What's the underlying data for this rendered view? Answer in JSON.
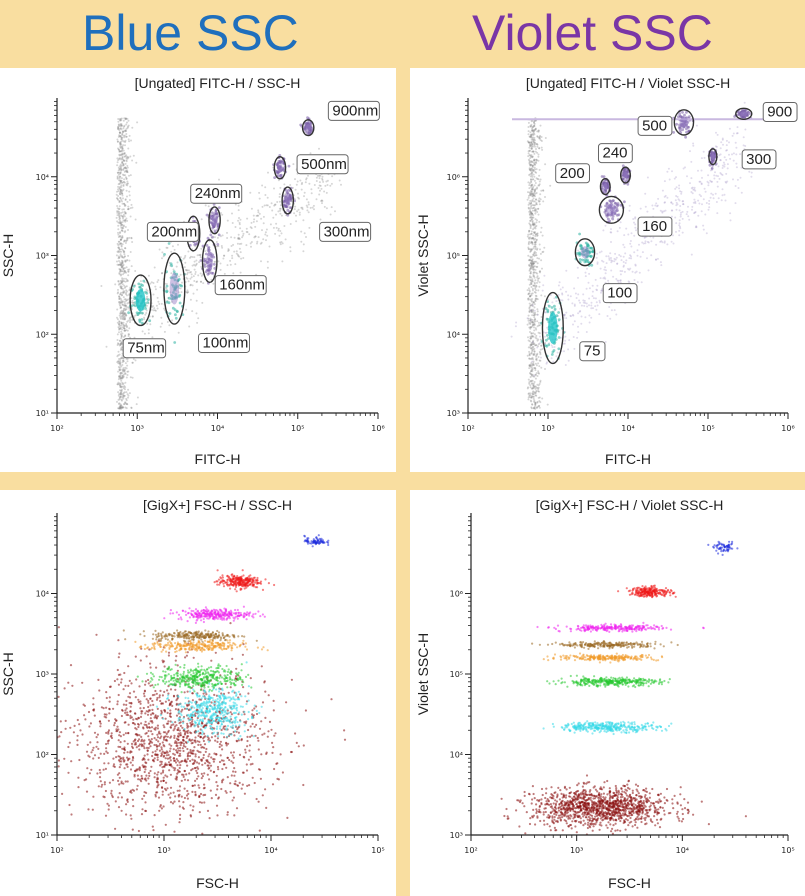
{
  "header": {
    "left_title": "Blue SSC",
    "right_title": "Violet SSC"
  },
  "colors": {
    "blue_title": "#1f6fbd",
    "violet_title": "#7a36a6",
    "background": "#f9dea0"
  },
  "chart_data": [
    {
      "type": "scatter",
      "title": "[Ungated] FITC-H / SSC-H",
      "xlabel": "FITC-H",
      "ylabel": "SSC-H",
      "xscale": "log",
      "yscale": "log",
      "xlim": [
        100,
        1000000
      ],
      "ylim": [
        10,
        100000
      ],
      "x_ticks": [
        {
          "v": 100,
          "t": "10²"
        },
        {
          "v": 1000,
          "t": "10³"
        },
        {
          "v": 10000,
          "t": "10⁴"
        },
        {
          "v": 100000,
          "t": "10⁵"
        },
        {
          "v": 1000000,
          "t": "10⁶"
        }
      ],
      "y_ticks": [
        {
          "v": 10,
          "t": "10¹"
        },
        {
          "v": 100,
          "t": "10²"
        },
        {
          "v": 1000,
          "t": "10³"
        },
        {
          "v": 10000,
          "t": "10⁴"
        }
      ],
      "gates": [
        {
          "label": "75nm",
          "x": 1100,
          "y": 270,
          "rx_dec": 0.13,
          "ry_dec": 0.32,
          "lx": 750,
          "ly": 60
        },
        {
          "label": "100nm",
          "x": 2900,
          "y": 380,
          "rx_dec": 0.13,
          "ry_dec": 0.45,
          "lx": 6500,
          "ly": 70
        },
        {
          "label": "160nm",
          "x": 8000,
          "y": 850,
          "rx_dec": 0.09,
          "ry_dec": 0.27,
          "lx": 10500,
          "ly": 380
        },
        {
          "label": "200nm",
          "x": 5000,
          "y": 1900,
          "rx_dec": 0.08,
          "ry_dec": 0.22,
          "lx": 1500,
          "ly": 1800
        },
        {
          "label": "240nm",
          "x": 9200,
          "y": 2800,
          "rx_dec": 0.07,
          "ry_dec": 0.17,
          "lx": 5200,
          "ly": 5500
        },
        {
          "label": "300nm",
          "x": 75000,
          "y": 5000,
          "rx_dec": 0.07,
          "ry_dec": 0.17,
          "lx": 210000,
          "ly": 1800
        },
        {
          "label": "500nm",
          "x": 60000,
          "y": 13000,
          "rx_dec": 0.07,
          "ry_dec": 0.14,
          "lx": 110000,
          "ly": 13000
        },
        {
          "label": "900nm",
          "x": 135000,
          "y": 42000,
          "rx_dec": 0.07,
          "ry_dec": 0.1,
          "lx": 270000,
          "ly": 62000
        }
      ]
    },
    {
      "type": "scatter",
      "title": "[Ungated] FITC-H / Violet SSC-H",
      "xlabel": "FITC-H",
      "ylabel": "Violet SSC-H",
      "xscale": "log",
      "yscale": "log",
      "xlim": [
        100,
        1000000
      ],
      "ylim": [
        1000,
        10000000
      ],
      "x_ticks": [
        {
          "v": 100,
          "t": "10²"
        },
        {
          "v": 1000,
          "t": "10³"
        },
        {
          "v": 10000,
          "t": "10⁴"
        },
        {
          "v": 100000,
          "t": "10⁵"
        },
        {
          "v": 1000000,
          "t": "10⁶"
        }
      ],
      "y_ticks": [
        {
          "v": 1000,
          "t": "10³"
        },
        {
          "v": 10000,
          "t": "10⁴"
        },
        {
          "v": 100000,
          "t": "10⁵"
        },
        {
          "v": 1000000,
          "t": "10⁶"
        }
      ],
      "gates": [
        {
          "label": "75",
          "x": 1150,
          "y": 12000,
          "rx_dec": 0.13,
          "ry_dec": 0.45,
          "lx": 2800,
          "ly": 5500
        },
        {
          "label": "100",
          "x": 2900,
          "y": 110000,
          "rx_dec": 0.12,
          "ry_dec": 0.17,
          "lx": 5500,
          "ly": 30000
        },
        {
          "label": "160",
          "x": 6200,
          "y": 380000,
          "rx_dec": 0.15,
          "ry_dec": 0.17,
          "lx": 15000,
          "ly": 210000
        },
        {
          "label": "200",
          "x": 5200,
          "y": 750000,
          "rx_dec": 0.06,
          "ry_dec": 0.1,
          "lx": 1400,
          "ly": 1000000
        },
        {
          "label": "240",
          "x": 9300,
          "y": 1050000,
          "rx_dec": 0.06,
          "ry_dec": 0.1,
          "lx": 4800,
          "ly": 1800000
        },
        {
          "label": "300",
          "x": 115000,
          "y": 1800000,
          "rx_dec": 0.05,
          "ry_dec": 0.1,
          "lx": 300000,
          "ly": 1500000
        },
        {
          "label": "500",
          "x": 50000,
          "y": 4900000,
          "rx_dec": 0.12,
          "ry_dec": 0.16,
          "lx": 15000,
          "ly": 4000000
        },
        {
          "label": "900",
          "x": 280000,
          "y": 6300000,
          "rx_dec": 0.1,
          "ry_dec": 0.07,
          "lx": 550000,
          "ly": 6000000
        }
      ]
    },
    {
      "type": "scatter",
      "title": "[GigX+] FSC-H / SSC-H",
      "xlabel": "FSC-H",
      "ylabel": "SSC-H",
      "xscale": "log",
      "yscale": "log",
      "xlim": [
        100,
        100000
      ],
      "ylim": [
        10,
        100000
      ],
      "x_ticks": [
        {
          "v": 100,
          "t": "10²"
        },
        {
          "v": 1000,
          "t": "10³"
        },
        {
          "v": 10000,
          "t": "10⁴"
        },
        {
          "v": 100000,
          "t": "10⁵"
        }
      ],
      "y_ticks": [
        {
          "v": 10,
          "t": "10¹"
        },
        {
          "v": 100,
          "t": "10²"
        },
        {
          "v": 1000,
          "t": "10³"
        },
        {
          "v": 10000,
          "t": "10⁴"
        }
      ],
      "clusters": [
        {
          "color": "#8a1010",
          "x": 1200,
          "y": 140,
          "sx": 0.45,
          "sy": 0.45,
          "n": 1400
        },
        {
          "color": "#35d8e8",
          "x": 2800,
          "y": 350,
          "sx": 0.17,
          "sy": 0.14,
          "n": 420
        },
        {
          "color": "#28c832",
          "x": 2200,
          "y": 900,
          "sx": 0.2,
          "sy": 0.07,
          "n": 360
        },
        {
          "color": "#f09a2a",
          "x": 2000,
          "y": 2200,
          "sx": 0.22,
          "sy": 0.035,
          "n": 260
        },
        {
          "color": "#9a6a25",
          "x": 2000,
          "y": 3000,
          "sx": 0.2,
          "sy": 0.03,
          "n": 230
        },
        {
          "color": "#ee22ee",
          "x": 3000,
          "y": 5500,
          "sx": 0.17,
          "sy": 0.035,
          "n": 260
        },
        {
          "color": "#ee1818",
          "x": 5000,
          "y": 14000,
          "sx": 0.1,
          "sy": 0.04,
          "n": 240
        },
        {
          "color": "#1c2adc",
          "x": 26000,
          "y": 45000,
          "sx": 0.05,
          "sy": 0.03,
          "n": 70
        }
      ]
    },
    {
      "type": "scatter",
      "title": "[GigX+] FSC-H / Violet SSC-H",
      "xlabel": "FSC-H",
      "ylabel": "Violet SSC-H",
      "xscale": "log",
      "yscale": "log",
      "xlim": [
        100,
        100000
      ],
      "ylim": [
        1000,
        10000000
      ],
      "x_ticks": [
        {
          "v": 100,
          "t": "10²"
        },
        {
          "v": 1000,
          "t": "10³"
        },
        {
          "v": 10000,
          "t": "10⁴"
        },
        {
          "v": 100000,
          "t": "10⁵"
        }
      ],
      "y_ticks": [
        {
          "v": 1000,
          "t": "10³"
        },
        {
          "v": 10000,
          "t": "10⁴"
        },
        {
          "v": 100000,
          "t": "10⁵"
        },
        {
          "v": 1000000,
          "t": "10⁶"
        }
      ],
      "clusters": [
        {
          "color": "#8a1010",
          "x": 1700,
          "y": 2200,
          "sx": 0.32,
          "sy": 0.12,
          "n": 1200
        },
        {
          "color": "#35d8e8",
          "x": 2000,
          "y": 22000,
          "sx": 0.24,
          "sy": 0.03,
          "n": 330
        },
        {
          "color": "#28c832",
          "x": 2000,
          "y": 80000,
          "sx": 0.24,
          "sy": 0.025,
          "n": 320
        },
        {
          "color": "#f09a2a",
          "x": 2000,
          "y": 160000,
          "sx": 0.24,
          "sy": 0.018,
          "n": 230
        },
        {
          "color": "#9a6a25",
          "x": 2000,
          "y": 230000,
          "sx": 0.24,
          "sy": 0.018,
          "n": 220
        },
        {
          "color": "#ee22ee",
          "x": 2200,
          "y": 370000,
          "sx": 0.24,
          "sy": 0.02,
          "n": 240
        },
        {
          "color": "#ee1818",
          "x": 5000,
          "y": 1050000,
          "sx": 0.1,
          "sy": 0.03,
          "n": 220
        },
        {
          "color": "#1c2adc",
          "x": 25000,
          "y": 3700000,
          "sx": 0.05,
          "sy": 0.03,
          "n": 60
        }
      ]
    }
  ]
}
